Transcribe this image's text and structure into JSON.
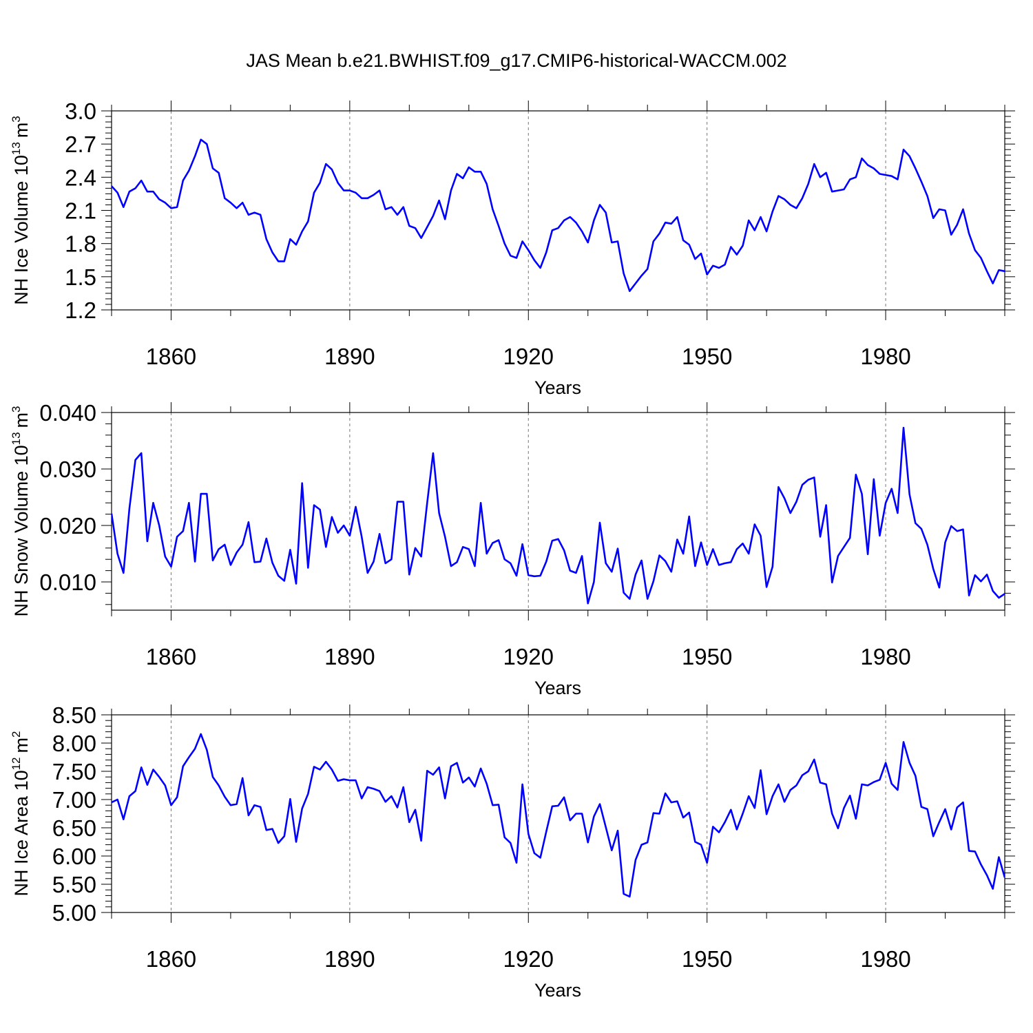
{
  "figure": {
    "title": "JAS Mean b.e21.BWHIST.f09_g17.CMIP6-historical-WACCM.002"
  },
  "colors": {
    "series": "#0000ff",
    "axes": "#000000",
    "grid": "#777777"
  },
  "chart_data": [
    {
      "type": "line",
      "name": "ice-volume",
      "title": "",
      "xlabel": "Years",
      "ylabel_main": "NH Ice Volume 10",
      "ylabel_exp": "13",
      "ylabel_unit": "m",
      "ylabel_unit_exp": "3",
      "xlim": [
        1850,
        2000
      ],
      "ylim": [
        1.2,
        3.0
      ],
      "x_ticks": [
        1860,
        1890,
        1920,
        1950,
        1980
      ],
      "x_tick_labels": [
        "1860",
        "1890",
        "1920",
        "1950",
        "1980"
      ],
      "y_ticks": [
        1.2,
        1.5,
        1.8,
        2.1,
        2.4,
        2.7,
        3.0
      ],
      "y_tick_labels": [
        "1.2",
        "1.5",
        "1.8",
        "2.1",
        "2.4",
        "2.7",
        "3.0"
      ],
      "x_start": 1850,
      "values": [
        2.32,
        2.26,
        2.13,
        2.27,
        2.3,
        2.37,
        2.27,
        2.27,
        2.2,
        2.17,
        2.12,
        2.13,
        2.37,
        2.46,
        2.59,
        2.74,
        2.7,
        2.48,
        2.44,
        2.21,
        2.17,
        2.12,
        2.17,
        2.06,
        2.08,
        2.06,
        1.84,
        1.72,
        1.64,
        1.64,
        1.84,
        1.79,
        1.91,
        2.0,
        2.26,
        2.35,
        2.52,
        2.47,
        2.35,
        2.28,
        2.28,
        2.26,
        2.21,
        2.21,
        2.24,
        2.28,
        2.11,
        2.13,
        2.06,
        2.13,
        1.96,
        1.94,
        1.85,
        1.95,
        2.05,
        2.19,
        2.02,
        2.28,
        2.43,
        2.39,
        2.49,
        2.45,
        2.45,
        2.34,
        2.11,
        1.96,
        1.8,
        1.69,
        1.67,
        1.82,
        1.74,
        1.65,
        1.58,
        1.72,
        1.92,
        1.94,
        2.01,
        2.04,
        1.99,
        1.91,
        1.81,
        2.01,
        2.15,
        2.08,
        1.81,
        1.82,
        1.53,
        1.37,
        1.44,
        1.51,
        1.57,
        1.82,
        1.89,
        1.99,
        1.98,
        2.04,
        1.83,
        1.79,
        1.66,
        1.71,
        1.52,
        1.6,
        1.58,
        1.61,
        1.77,
        1.7,
        1.78,
        2.01,
        1.92,
        2.04,
        1.91,
        2.09,
        2.23,
        2.2,
        2.15,
        2.12,
        2.21,
        2.34,
        2.52,
        2.4,
        2.44,
        2.27,
        2.28,
        2.29,
        2.38,
        2.4,
        2.57,
        2.51,
        2.48,
        2.43,
        2.42,
        2.41,
        2.38,
        2.65,
        2.59,
        2.48,
        2.36,
        2.23,
        2.03,
        2.11,
        2.1,
        1.88,
        1.97,
        2.11,
        1.89,
        1.74,
        1.67,
        1.55,
        1.44,
        1.56,
        1.55
      ]
    },
    {
      "type": "line",
      "name": "snow-volume",
      "title": "",
      "xlabel": "Years",
      "ylabel_main": "NH Snow Volume 10",
      "ylabel_exp": "13",
      "ylabel_unit": "m",
      "ylabel_unit_exp": "3",
      "xlim": [
        1850,
        2000
      ],
      "ylim": [
        0.005,
        0.04
      ],
      "x_ticks": [
        1860,
        1890,
        1920,
        1950,
        1980
      ],
      "x_tick_labels": [
        "1860",
        "1890",
        "1920",
        "1950",
        "1980"
      ],
      "y_ticks": [
        0.01,
        0.02,
        0.03,
        0.04
      ],
      "y_tick_labels": [
        "0.010",
        "0.020",
        "0.030",
        "0.040"
      ],
      "x_start": 1850,
      "values": [
        0.0221,
        0.015,
        0.0116,
        0.023,
        0.0316,
        0.0328,
        0.0172,
        0.024,
        0.02,
        0.0145,
        0.0127,
        0.018,
        0.019,
        0.024,
        0.0136,
        0.0256,
        0.0256,
        0.0138,
        0.0158,
        0.0166,
        0.013,
        0.0152,
        0.0166,
        0.0206,
        0.0135,
        0.0136,
        0.0177,
        0.0134,
        0.0111,
        0.0102,
        0.0157,
        0.0097,
        0.0275,
        0.0125,
        0.0236,
        0.0228,
        0.0162,
        0.0215,
        0.0187,
        0.02,
        0.0182,
        0.0233,
        0.018,
        0.0116,
        0.0136,
        0.0185,
        0.0133,
        0.014,
        0.0242,
        0.0242,
        0.0113,
        0.016,
        0.0145,
        0.024,
        0.0328,
        0.0222,
        0.018,
        0.0128,
        0.0135,
        0.0162,
        0.0158,
        0.0128,
        0.024,
        0.015,
        0.0169,
        0.0174,
        0.014,
        0.0133,
        0.0111,
        0.0167,
        0.0112,
        0.011,
        0.0111,
        0.0136,
        0.0173,
        0.0176,
        0.0156,
        0.012,
        0.0116,
        0.0146,
        0.0062,
        0.01,
        0.0205,
        0.0133,
        0.0118,
        0.0159,
        0.0081,
        0.007,
        0.0113,
        0.0138,
        0.007,
        0.0101,
        0.0147,
        0.0137,
        0.0118,
        0.0175,
        0.015,
        0.0216,
        0.0128,
        0.017,
        0.013,
        0.0158,
        0.013,
        0.0133,
        0.0135,
        0.0158,
        0.0168,
        0.015,
        0.0202,
        0.0182,
        0.0091,
        0.0127,
        0.0268,
        0.0248,
        0.0222,
        0.0242,
        0.0272,
        0.0281,
        0.0285,
        0.018,
        0.0236,
        0.0099,
        0.0146,
        0.0162,
        0.0178,
        0.029,
        0.0256,
        0.0149,
        0.0282,
        0.0182,
        0.024,
        0.0265,
        0.0222,
        0.0373,
        0.0255,
        0.0204,
        0.0194,
        0.0166,
        0.0123,
        0.009,
        0.017,
        0.0199,
        0.019,
        0.0193,
        0.0076,
        0.0112,
        0.0101,
        0.0113,
        0.0084,
        0.0072,
        0.0079
      ]
    },
    {
      "type": "line",
      "name": "ice-area",
      "title": "",
      "xlabel": "Years",
      "ylabel_main": "NH Ice Area 10",
      "ylabel_exp": "12",
      "ylabel_unit": "m",
      "ylabel_unit_exp": "2",
      "xlim": [
        1850,
        2000
      ],
      "ylim": [
        5.0,
        8.5
      ],
      "x_ticks": [
        1860,
        1890,
        1920,
        1950,
        1980
      ],
      "x_tick_labels": [
        "1860",
        "1890",
        "1920",
        "1950",
        "1980"
      ],
      "y_ticks": [
        5.0,
        5.5,
        6.0,
        6.5,
        7.0,
        7.5,
        8.0,
        8.5
      ],
      "y_tick_labels": [
        "5.00",
        "5.50",
        "6.00",
        "6.50",
        "7.00",
        "7.50",
        "8.00",
        "8.50"
      ],
      "x_start": 1850,
      "values": [
        6.95,
        7.0,
        6.65,
        7.06,
        7.15,
        7.57,
        7.26,
        7.53,
        7.4,
        7.25,
        6.9,
        7.04,
        7.59,
        7.75,
        7.9,
        8.16,
        7.88,
        7.4,
        7.25,
        7.05,
        6.9,
        6.92,
        7.38,
        6.72,
        6.9,
        6.87,
        6.46,
        6.48,
        6.23,
        6.35,
        7.01,
        6.25,
        6.84,
        7.1,
        7.58,
        7.53,
        7.67,
        7.53,
        7.33,
        7.36,
        7.34,
        7.34,
        7.02,
        7.22,
        7.19,
        7.15,
        6.96,
        7.06,
        6.86,
        7.22,
        6.6,
        6.82,
        6.27,
        7.51,
        7.44,
        7.57,
        7.02,
        7.59,
        7.65,
        7.3,
        7.39,
        7.23,
        7.55,
        7.28,
        6.9,
        6.91,
        6.33,
        6.23,
        5.88,
        7.27,
        6.39,
        6.05,
        5.97,
        6.43,
        6.88,
        6.89,
        7.04,
        6.63,
        6.75,
        6.75,
        6.24,
        6.7,
        6.92,
        6.51,
        6.1,
        6.45,
        5.33,
        5.28,
        5.93,
        6.2,
        6.24,
        6.76,
        6.75,
        7.11,
        6.95,
        6.97,
        6.68,
        6.77,
        6.25,
        6.2,
        5.88,
        6.52,
        6.42,
        6.6,
        6.82,
        6.47,
        6.75,
        7.06,
        6.85,
        7.52,
        6.74,
        7.06,
        7.27,
        6.96,
        7.17,
        7.25,
        7.43,
        7.5,
        7.71,
        7.3,
        7.27,
        6.75,
        6.49,
        6.85,
        7.07,
        6.66,
        7.27,
        7.25,
        7.31,
        7.35,
        7.65,
        7.28,
        7.17,
        8.02,
        7.65,
        7.42,
        6.87,
        6.83,
        6.35,
        6.6,
        6.83,
        6.47,
        6.86,
        6.95,
        6.09,
        6.08,
        5.85,
        5.66,
        5.42,
        5.98,
        5.62
      ]
    }
  ]
}
